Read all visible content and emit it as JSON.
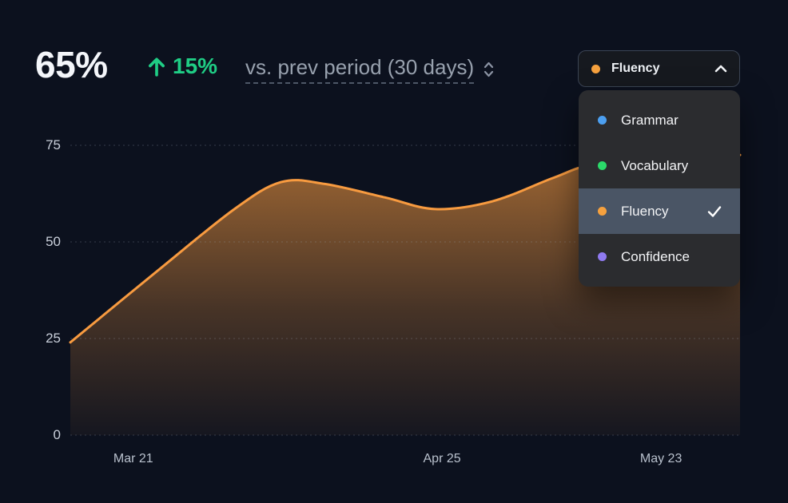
{
  "header": {
    "current_value": "65%",
    "delta": "15%",
    "trend_direction": "up",
    "comparison_label": "vs. prev period (30 days)",
    "accent_green": "#1fcd85"
  },
  "dropdown": {
    "selected": {
      "label": "Fluency",
      "color": "#f6a13e"
    },
    "options": [
      {
        "label": "Grammar",
        "color": "#4c9ff0",
        "selected": false
      },
      {
        "label": "Vocabulary",
        "color": "#2bd96a",
        "selected": false
      },
      {
        "label": "Fluency",
        "color": "#f6a13e",
        "selected": true
      },
      {
        "label": "Confidence",
        "color": "#8f7af0",
        "selected": false
      }
    ]
  },
  "chart_data": {
    "type": "area",
    "title": "",
    "xlabel": "",
    "ylabel": "",
    "unit": "%",
    "ylim": [
      0,
      75
    ],
    "grid": true,
    "y_ticks": [
      "75",
      "50",
      "25",
      "0"
    ],
    "x_ticks": [
      {
        "label": "Mar 21",
        "f": 0.094
      },
      {
        "label": "Apr 25",
        "f": 0.555
      },
      {
        "label": "May 23",
        "f": 0.882
      }
    ],
    "series": [
      {
        "name": "Fluency",
        "color": "#f89b40",
        "points": [
          {
            "t": 0.0,
            "v": 24.0
          },
          {
            "t": 0.13,
            "v": 42.5
          },
          {
            "t": 0.245,
            "v": 58.5
          },
          {
            "t": 0.315,
            "v": 65.5
          },
          {
            "t": 0.38,
            "v": 65.0
          },
          {
            "t": 0.47,
            "v": 61.5
          },
          {
            "t": 0.545,
            "v": 58.5
          },
          {
            "t": 0.63,
            "v": 60.5
          },
          {
            "t": 0.72,
            "v": 66.5
          },
          {
            "t": 0.78,
            "v": 70.0
          },
          {
            "t": 0.885,
            "v": 71.5
          },
          {
            "t": 1.0,
            "v": 72.5
          }
        ]
      }
    ]
  }
}
